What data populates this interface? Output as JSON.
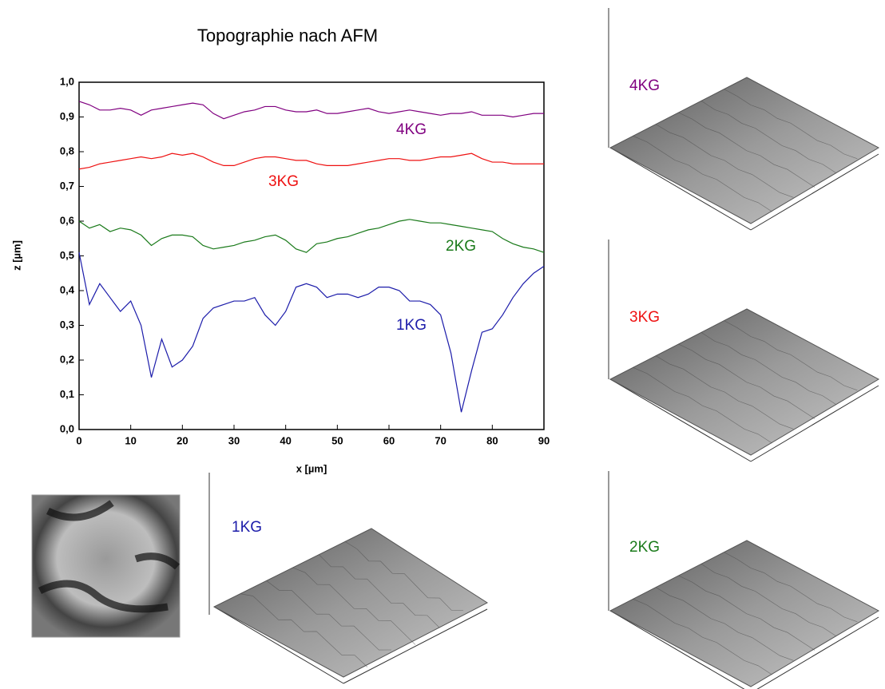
{
  "chart_data": {
    "type": "line",
    "title": "Topographie nach AFM",
    "x_label": "x [µm]",
    "y_label": "z [µm]",
    "x": [
      0,
      2,
      4,
      6,
      8,
      10,
      12,
      14,
      16,
      18,
      20,
      22,
      24,
      26,
      28,
      30,
      32,
      34,
      36,
      38,
      40,
      42,
      44,
      46,
      48,
      50,
      52,
      54,
      56,
      58,
      60,
      62,
      64,
      66,
      68,
      70,
      72,
      74,
      76,
      78,
      80,
      82,
      84,
      86,
      88,
      90
    ],
    "series": [
      {
        "name": "1KG",
        "color": "#1c1caa",
        "values": [
          0.51,
          0.36,
          0.42,
          0.38,
          0.34,
          0.37,
          0.3,
          0.15,
          0.26,
          0.18,
          0.2,
          0.24,
          0.32,
          0.35,
          0.36,
          0.37,
          0.37,
          0.38,
          0.33,
          0.3,
          0.34,
          0.41,
          0.42,
          0.41,
          0.38,
          0.39,
          0.39,
          0.38,
          0.39,
          0.41,
          0.41,
          0.4,
          0.37,
          0.37,
          0.36,
          0.33,
          0.22,
          0.05,
          0.17,
          0.28,
          0.29,
          0.33,
          0.38,
          0.42,
          0.45,
          0.47
        ]
      },
      {
        "name": "2KG",
        "color": "#1a7a1a",
        "values": [
          0.6,
          0.58,
          0.59,
          0.57,
          0.58,
          0.575,
          0.56,
          0.53,
          0.55,
          0.56,
          0.56,
          0.555,
          0.53,
          0.52,
          0.525,
          0.53,
          0.54,
          0.545,
          0.555,
          0.56,
          0.545,
          0.52,
          0.51,
          0.535,
          0.54,
          0.55,
          0.555,
          0.565,
          0.575,
          0.58,
          0.59,
          0.6,
          0.605,
          0.6,
          0.595,
          0.595,
          0.59,
          0.585,
          0.58,
          0.575,
          0.57,
          0.55,
          0.535,
          0.525,
          0.52,
          0.51
        ]
      },
      {
        "name": "3KG",
        "color": "#ee1111",
        "values": [
          0.75,
          0.755,
          0.765,
          0.77,
          0.775,
          0.78,
          0.785,
          0.78,
          0.785,
          0.795,
          0.79,
          0.795,
          0.785,
          0.77,
          0.76,
          0.76,
          0.77,
          0.78,
          0.785,
          0.785,
          0.78,
          0.775,
          0.775,
          0.765,
          0.76,
          0.76,
          0.76,
          0.765,
          0.77,
          0.775,
          0.78,
          0.78,
          0.775,
          0.775,
          0.78,
          0.785,
          0.785,
          0.79,
          0.795,
          0.78,
          0.77,
          0.77,
          0.765,
          0.765,
          0.765,
          0.765
        ]
      },
      {
        "name": "4KG",
        "color": "#800080",
        "values": [
          0.945,
          0.935,
          0.92,
          0.92,
          0.925,
          0.92,
          0.905,
          0.92,
          0.925,
          0.93,
          0.935,
          0.94,
          0.935,
          0.91,
          0.895,
          0.905,
          0.915,
          0.92,
          0.93,
          0.93,
          0.92,
          0.915,
          0.915,
          0.92,
          0.91,
          0.91,
          0.915,
          0.92,
          0.925,
          0.915,
          0.91,
          0.915,
          0.92,
          0.915,
          0.91,
          0.905,
          0.91,
          0.91,
          0.915,
          0.905,
          0.905,
          0.905,
          0.9,
          0.905,
          0.91,
          0.91
        ]
      }
    ],
    "xlim": [
      0,
      90
    ],
    "xticks": [
      0,
      10,
      20,
      30,
      40,
      50,
      60,
      70,
      80,
      90
    ],
    "ylim": [
      0,
      1
    ],
    "yticks": [
      {
        "value": 0,
        "label": "0,0"
      },
      {
        "value": 0.1,
        "label": "0,1"
      },
      {
        "value": 0.2,
        "label": "0,2"
      },
      {
        "value": 0.3,
        "label": "0,3"
      },
      {
        "value": 0.4,
        "label": "0,4"
      },
      {
        "value": 0.5,
        "label": "0,5"
      },
      {
        "value": 0.6,
        "label": "0,6"
      },
      {
        "value": 0.7,
        "label": "0,7"
      },
      {
        "value": 0.8,
        "label": "0,8"
      },
      {
        "value": 0.9,
        "label": "0,9"
      },
      {
        "value": 1,
        "label": "1,0"
      }
    ]
  }
}
